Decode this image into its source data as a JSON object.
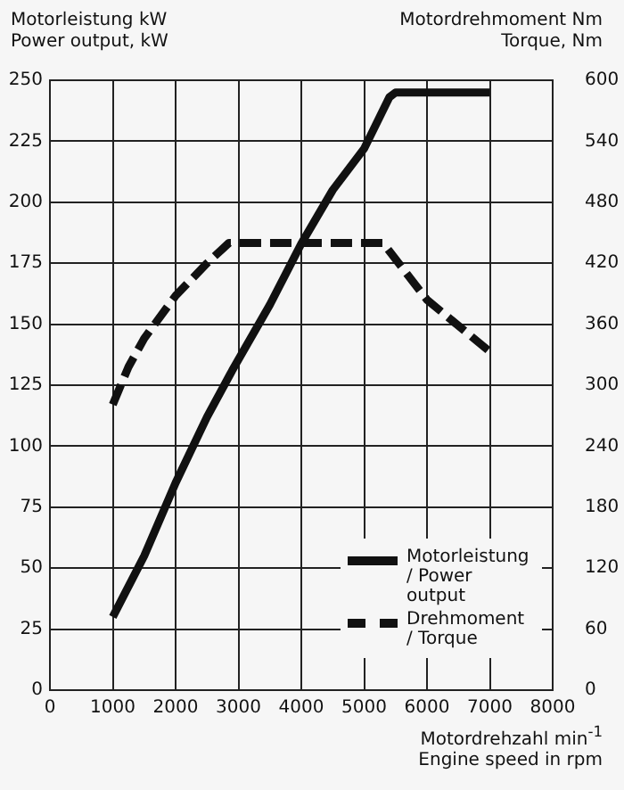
{
  "chart_data": {
    "type": "line",
    "ylabel": "Motorleistung kW\nPower output, kW",
    "y2label": "Motordrehmoment Nm\nTorque, Nm",
    "xlabel": "Motordrehzahl min$^{-1}$\nEngine speed in rpm",
    "xlim": [
      0,
      8000
    ],
    "xticks": [
      0,
      1000,
      2000,
      3000,
      4000,
      5000,
      6000,
      7000,
      8000
    ],
    "ylim": [
      0,
      250
    ],
    "yticks": [
      0,
      25,
      50,
      75,
      100,
      125,
      150,
      175,
      200,
      225,
      250
    ],
    "y2lim": [
      0,
      600
    ],
    "y2ticks": [
      0,
      60,
      120,
      180,
      240,
      300,
      360,
      420,
      480,
      540,
      600
    ],
    "grid": true,
    "legend": "bottom right",
    "marker": "none",
    "series": [
      {
        "name": "Motorleistung / Power output",
        "color": "#111111",
        "line_style": "solid",
        "x": [
          1000,
          1500,
          2000,
          2500,
          2900,
          3500,
          4000,
          4500,
          5000,
          5400,
          5500,
          7000
        ],
        "values": [
          30,
          55,
          85,
          112,
          131,
          158,
          183,
          205,
          222,
          243,
          245,
          245
        ]
      },
      {
        "name": "Drehmoment / Torque",
        "color": "#111111",
        "line_style": "dashed",
        "axis": "y2",
        "x": [
          1000,
          1250,
          1500,
          2000,
          2500,
          2850,
          5300,
          6000,
          7000
        ],
        "values": [
          281,
          318,
          346,
          388,
          420,
          440,
          440,
          384,
          333
        ]
      }
    ]
  }
}
